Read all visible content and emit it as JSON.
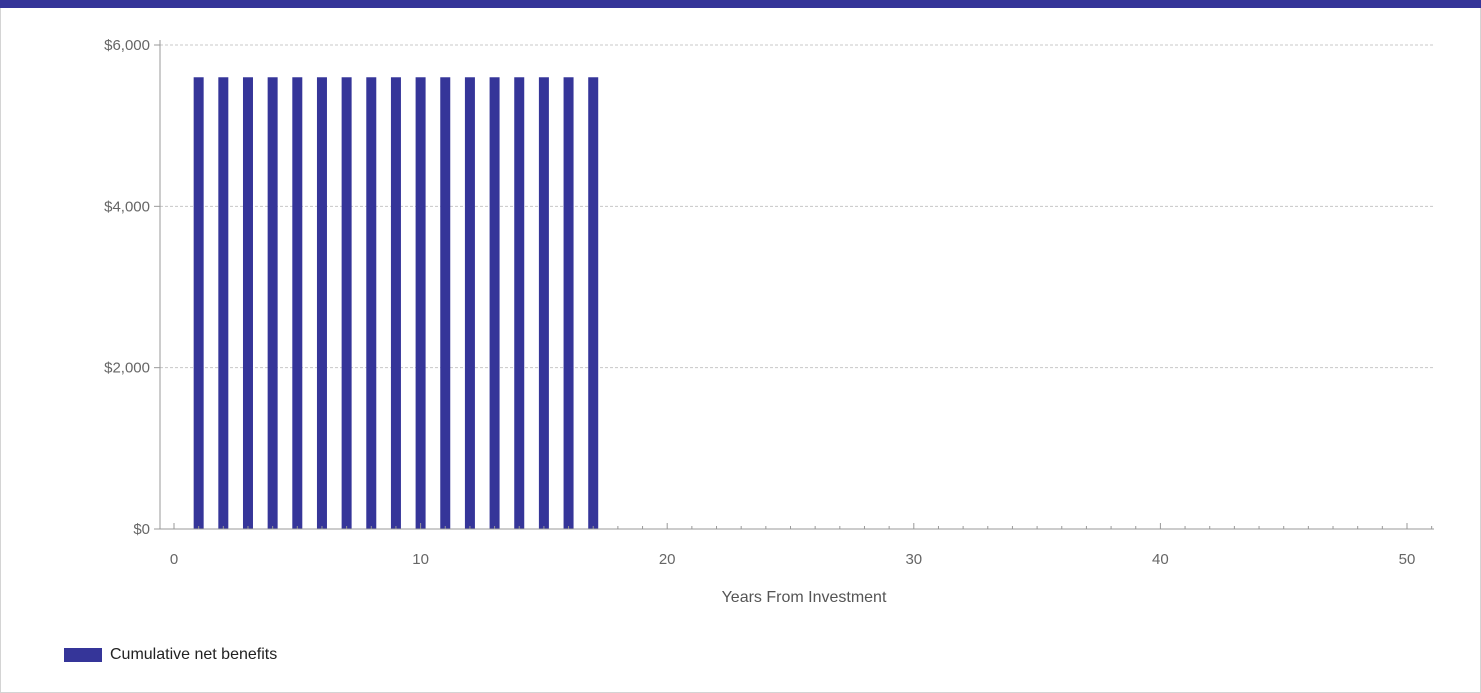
{
  "colors": {
    "accent": "#353599",
    "grid": "#c8c8c8",
    "axis": "#999999"
  },
  "chart_data": {
    "type": "bar",
    "x": [
      1,
      2,
      3,
      4,
      5,
      6,
      7,
      8,
      9,
      10,
      11,
      12,
      13,
      14,
      15,
      16,
      17
    ],
    "series": [
      {
        "name": "Cumulative net benefits",
        "values": [
          5600,
          5600,
          5600,
          5600,
          5600,
          5600,
          5600,
          5600,
          5600,
          5600,
          5600,
          5600,
          5600,
          5600,
          5600,
          5600,
          5600
        ]
      }
    ],
    "xlabel": "Years From Investment",
    "ylabel": "",
    "xlim": [
      0,
      51
    ],
    "ylim": [
      0,
      6000
    ],
    "x_ticks": [
      0,
      10,
      20,
      30,
      40,
      50
    ],
    "x_tick_labels": [
      "0",
      "10",
      "20",
      "30",
      "40",
      "50"
    ],
    "y_ticks": [
      0,
      2000,
      4000,
      6000
    ],
    "y_tick_labels": [
      "$0",
      "$2,000",
      "$4,000",
      "$6,000"
    ],
    "grid": true,
    "legend_position": "bottom-left"
  },
  "legend": {
    "label": "Cumulative net benefits"
  }
}
